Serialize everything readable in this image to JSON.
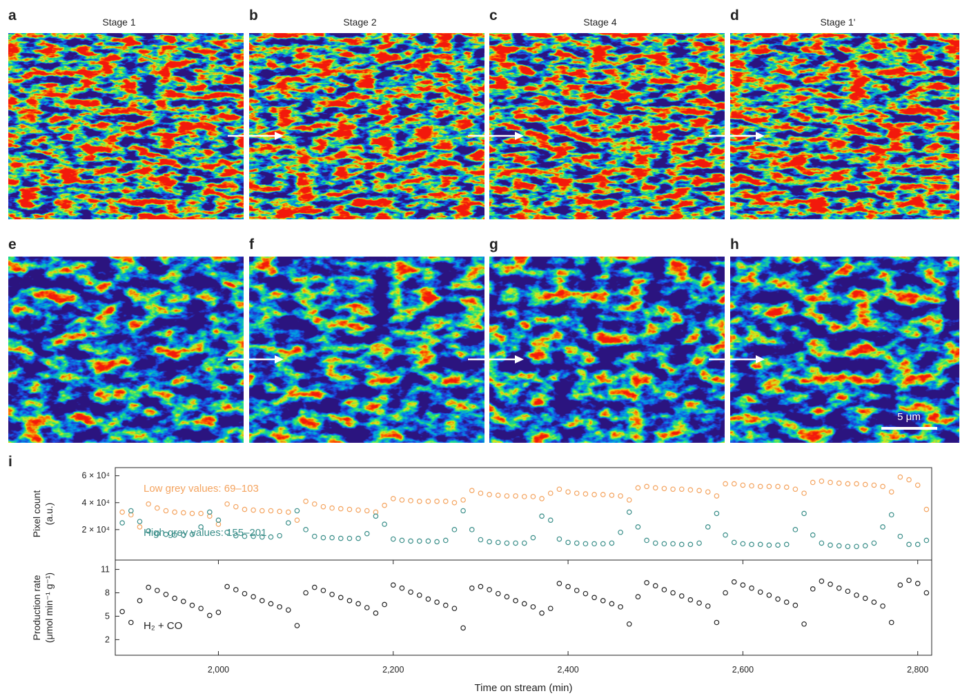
{
  "panels": [
    {
      "label": "a",
      "title": "Stage 1"
    },
    {
      "label": "b",
      "title": "Stage 2"
    },
    {
      "label": "c",
      "title": "Stage 4"
    },
    {
      "label": "d",
      "title": "Stage 1'"
    },
    {
      "label": "e"
    },
    {
      "label": "f"
    },
    {
      "label": "g"
    },
    {
      "label": "h"
    }
  ],
  "scale_bar": "5 μm",
  "chart_label": "i",
  "chart_data": [
    {
      "type": "scatter",
      "ylabel": [
        "Pixel count",
        "(a.u.)"
      ],
      "xlim": [
        1882,
        2816
      ],
      "ylim": [
        -2600,
        66000
      ],
      "yticks": [
        {
          "value": 20000,
          "label": "2 × 10⁴"
        },
        {
          "value": 40000,
          "label": "4 × 10⁴"
        },
        {
          "value": 60000,
          "label": "6 × 10⁴"
        }
      ],
      "x": [
        1890,
        1900,
        1910,
        1920,
        1930,
        1940,
        1950,
        1960,
        1970,
        1980,
        1990,
        2000,
        2010,
        2020,
        2030,
        2040,
        2050,
        2060,
        2070,
        2080,
        2090,
        2100,
        2110,
        2120,
        2130,
        2140,
        2150,
        2160,
        2170,
        2180,
        2190,
        2200,
        2210,
        2220,
        2230,
        2240,
        2250,
        2260,
        2270,
        2280,
        2290,
        2300,
        2310,
        2320,
        2330,
        2340,
        2350,
        2360,
        2370,
        2380,
        2390,
        2400,
        2410,
        2420,
        2430,
        2440,
        2450,
        2460,
        2470,
        2480,
        2490,
        2500,
        2510,
        2520,
        2530,
        2540,
        2550,
        2560,
        2570,
        2580,
        2590,
        2600,
        2610,
        2620,
        2630,
        2640,
        2650,
        2660,
        2670,
        2680,
        2690,
        2700,
        2710,
        2720,
        2730,
        2740,
        2750,
        2760,
        2770,
        2780,
        2790,
        2800,
        2810
      ],
      "series": [
        {
          "name": "Low grey values: 69–103",
          "color": "#f4a35e",
          "values": [
            33000,
            31000,
            22000,
            39000,
            36000,
            34000,
            33000,
            32500,
            32000,
            32000,
            30000,
            24000,
            39000,
            37000,
            35000,
            34500,
            34000,
            34000,
            33500,
            33000,
            27000,
            41000,
            39000,
            37000,
            36000,
            35500,
            35000,
            34500,
            34000,
            33000,
            38000,
            43000,
            42000,
            41500,
            41000,
            41000,
            41000,
            41000,
            40000,
            42000,
            49000,
            47000,
            46000,
            45500,
            45000,
            45000,
            44500,
            44500,
            43000,
            47000,
            50000,
            48000,
            47000,
            46500,
            46000,
            46000,
            45500,
            45000,
            42000,
            51000,
            52000,
            51000,
            50500,
            50000,
            50000,
            49500,
            49000,
            48000,
            45000,
            54000,
            54000,
            53000,
            52500,
            52000,
            52000,
            52000,
            51500,
            50000,
            47000,
            55000,
            56000,
            55000,
            54500,
            54000,
            54000,
            53500,
            53000,
            52000,
            48000,
            59000,
            57000,
            53000,
            35000
          ]
        },
        {
          "name": "High grey values: 155–201",
          "color": "#3a8e89",
          "values": [
            25000,
            34000,
            26000,
            19000,
            17000,
            16500,
            16000,
            16000,
            16500,
            22000,
            33000,
            27000,
            18000,
            15500,
            15000,
            15000,
            14500,
            14500,
            15500,
            25000,
            34000,
            20000,
            15000,
            14000,
            14000,
            13500,
            13500,
            13500,
            17000,
            30000,
            24000,
            13000,
            12000,
            11500,
            11500,
            11500,
            11000,
            12000,
            20000,
            34000,
            20000,
            12500,
            11000,
            10500,
            10000,
            10000,
            10000,
            14000,
            30000,
            27000,
            13000,
            10500,
            10000,
            9500,
            9500,
            9500,
            10000,
            18000,
            33000,
            22000,
            12000,
            10000,
            9500,
            9500,
            9000,
            9000,
            10000,
            22000,
            32000,
            16000,
            10500,
            9500,
            9000,
            9000,
            8500,
            8500,
            9000,
            20000,
            32000,
            16000,
            10000,
            8500,
            8000,
            7500,
            7500,
            8000,
            10000,
            22000,
            31000,
            15000,
            9000,
            9000,
            12000
          ]
        }
      ]
    },
    {
      "type": "scatter",
      "ylabel": [
        "Production rate",
        "(μmol min⁻¹ g⁻¹)"
      ],
      "xlabel": "Time on stream (min)",
      "xlim": [
        1882,
        2816
      ],
      "ylim": [
        0,
        12.2
      ],
      "xticks": [
        {
          "value": 2000,
          "label": "2,000"
        },
        {
          "value": 2200,
          "label": "2,200"
        },
        {
          "value": 2400,
          "label": "2,400"
        },
        {
          "value": 2600,
          "label": "2,600"
        },
        {
          "value": 2800,
          "label": "2,800"
        }
      ],
      "yticks": [
        2,
        5,
        8,
        11
      ],
      "x": [
        1890,
        1900,
        1910,
        1920,
        1930,
        1940,
        1950,
        1960,
        1970,
        1980,
        1990,
        2000,
        2010,
        2020,
        2030,
        2040,
        2050,
        2060,
        2070,
        2080,
        2090,
        2100,
        2110,
        2120,
        2130,
        2140,
        2150,
        2160,
        2170,
        2180,
        2190,
        2200,
        2210,
        2220,
        2230,
        2240,
        2250,
        2260,
        2270,
        2280,
        2290,
        2300,
        2310,
        2320,
        2330,
        2340,
        2350,
        2360,
        2370,
        2380,
        2390,
        2400,
        2410,
        2420,
        2430,
        2440,
        2450,
        2460,
        2470,
        2480,
        2490,
        2500,
        2510,
        2520,
        2530,
        2540,
        2550,
        2560,
        2570,
        2580,
        2590,
        2600,
        2610,
        2620,
        2630,
        2640,
        2650,
        2660,
        2670,
        2680,
        2690,
        2700,
        2710,
        2720,
        2730,
        2740,
        2750,
        2760,
        2770,
        2780,
        2790,
        2800,
        2810
      ],
      "series": [
        {
          "name": "H₂ + CO",
          "color": "#222222",
          "values": [
            5.6,
            4.2,
            7.0,
            8.7,
            8.3,
            7.8,
            7.3,
            6.9,
            6.4,
            6.0,
            5.1,
            5.5,
            8.8,
            8.4,
            7.9,
            7.5,
            7.0,
            6.6,
            6.2,
            5.8,
            3.8,
            8.0,
            8.7,
            8.3,
            7.8,
            7.4,
            7.0,
            6.6,
            6.1,
            5.4,
            6.5,
            9.0,
            8.6,
            8.1,
            7.7,
            7.2,
            6.8,
            6.4,
            6.0,
            3.5,
            8.6,
            8.8,
            8.4,
            7.9,
            7.5,
            7.0,
            6.6,
            6.2,
            5.4,
            6.0,
            9.2,
            8.8,
            8.3,
            7.9,
            7.4,
            7.0,
            6.6,
            6.2,
            4.0,
            7.5,
            9.3,
            8.9,
            8.4,
            8.0,
            7.6,
            7.1,
            6.7,
            6.3,
            4.2,
            8.0,
            9.4,
            9.0,
            8.6,
            8.1,
            7.7,
            7.2,
            6.8,
            6.4,
            4.0,
            8.5,
            9.5,
            9.1,
            8.6,
            8.2,
            7.7,
            7.3,
            6.8,
            6.3,
            4.2,
            9.0,
            9.6,
            9.2,
            8.0
          ]
        }
      ]
    }
  ]
}
